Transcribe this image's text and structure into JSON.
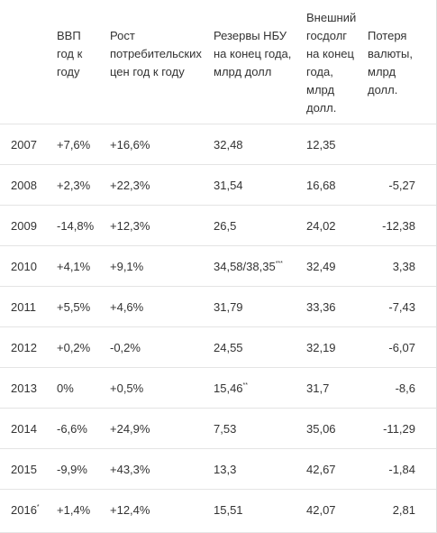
{
  "table": {
    "headers": {
      "gdp": [
        "ВВП",
        "год к",
        "году"
      ],
      "cpi": [
        "Рост",
        "потребительских",
        "цен год к году"
      ],
      "reserves": [
        "Резервы НБУ",
        "на конец года,",
        "млрд долл"
      ],
      "debt": [
        "Внешний",
        "госдолг",
        "на конец",
        "года,",
        "млрд",
        "долл."
      ],
      "loss": [
        "Потеря",
        "валюты,",
        "млрд",
        "долл."
      ]
    },
    "rows": [
      {
        "year": "2007",
        "year_mark": "",
        "gdp": "+7,6%",
        "cpi": "+16,6%",
        "reserves": "32,48",
        "reserves_mark": "",
        "debt": "12,35",
        "loss": ""
      },
      {
        "year": "2008",
        "year_mark": "",
        "gdp": "+2,3%",
        "cpi": "+22,3%",
        "reserves": "31,54",
        "reserves_mark": "",
        "debt": "16,68",
        "loss": "-5,27"
      },
      {
        "year": "2009",
        "year_mark": "",
        "gdp": "-14,8%",
        "cpi": "+12,3%",
        "reserves": "26,5",
        "reserves_mark": "",
        "debt": "24,02",
        "loss": "-12,38"
      },
      {
        "year": "2010",
        "year_mark": "",
        "gdp": "+4,1%",
        "cpi": "+9,1%",
        "reserves": "34,58/38,35",
        "reserves_mark": "***",
        "debt": "32,49",
        "loss": "3,38"
      },
      {
        "year": "2011",
        "year_mark": "",
        "gdp": "+5,5%",
        "cpi": "+4,6%",
        "reserves": "31,79",
        "reserves_mark": "",
        "debt": "33,36",
        "loss": "-7,43"
      },
      {
        "year": "2012",
        "year_mark": "",
        "gdp": "+0,2%",
        "cpi": "-0,2%",
        "reserves": "24,55",
        "reserves_mark": "",
        "debt": "32,19",
        "loss": "-6,07"
      },
      {
        "year": "2013",
        "year_mark": "",
        "gdp": "0%",
        "cpi": "+0,5%",
        "reserves": "15,46",
        "reserves_mark": "**",
        "debt": "31,7",
        "loss": "-8,6"
      },
      {
        "year": "2014",
        "year_mark": "",
        "gdp": "-6,6%",
        "cpi": "+24,9%",
        "reserves": "7,53",
        "reserves_mark": "",
        "debt": "35,06",
        "loss": "-11,29"
      },
      {
        "year": "2015",
        "year_mark": "",
        "gdp": "-9,9%",
        "cpi": "+43,3%",
        "reserves": "13,3",
        "reserves_mark": "",
        "debt": "42,67",
        "loss": "-1,84"
      },
      {
        "year": "2016",
        "year_mark": "*",
        "gdp": "+1,4%",
        "cpi": "+12,4%",
        "reserves": "15,51",
        "reserves_mark": "",
        "debt": "42,07",
        "loss": "2,81"
      }
    ]
  }
}
